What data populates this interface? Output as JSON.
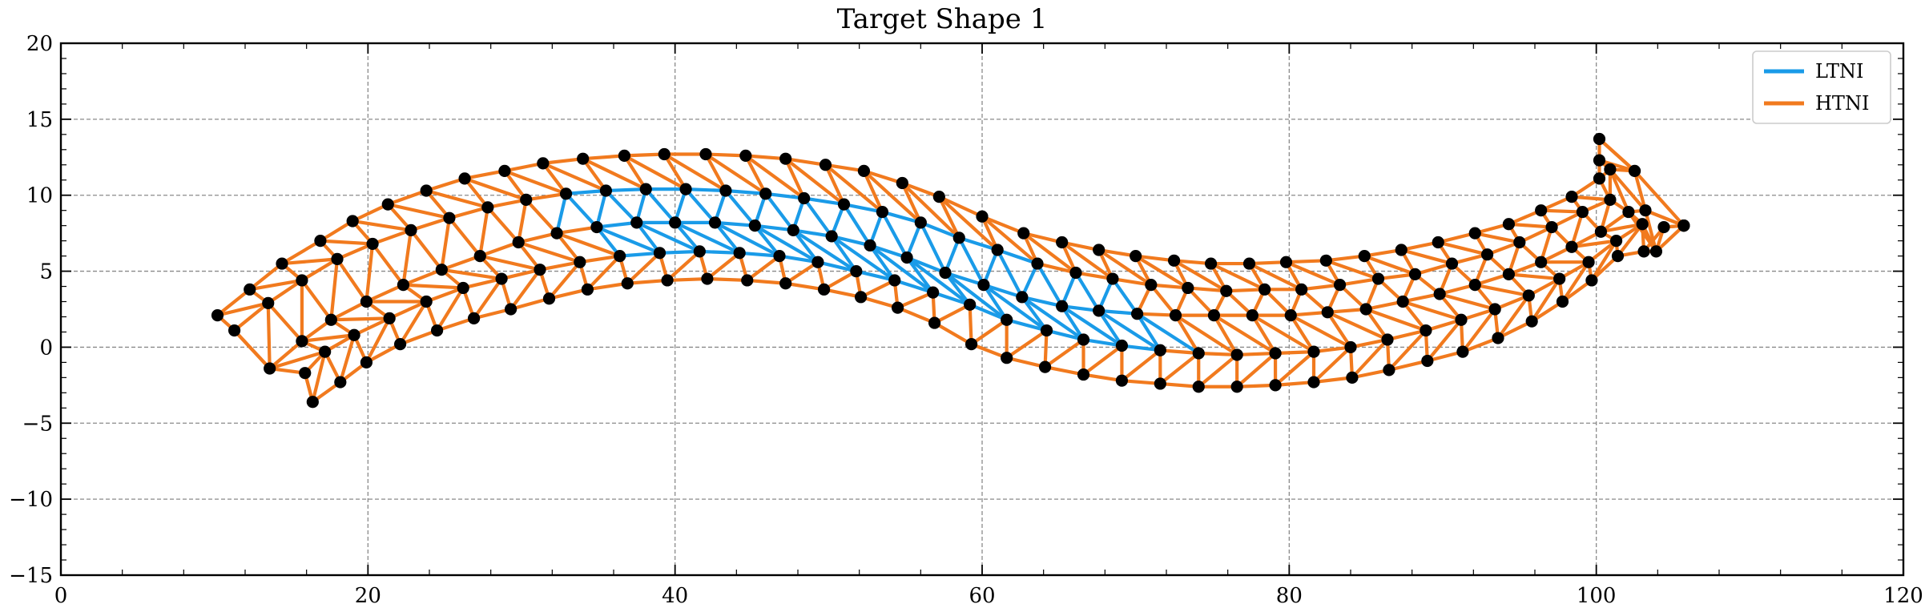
{
  "chart_data": {
    "type": "line",
    "title": "Target Shape 1",
    "xlabel": "",
    "ylabel": "",
    "xlim": [
      0,
      120
    ],
    "ylim": [
      -15,
      20
    ],
    "x_ticks": [
      0,
      20,
      40,
      60,
      80,
      100,
      120
    ],
    "y_ticks": [
      -15,
      -10,
      -5,
      0,
      5,
      10,
      15,
      20
    ],
    "x_tick_labels": [
      "0",
      "20",
      "40",
      "60",
      "80",
      "100",
      "120"
    ],
    "y_tick_labels": [
      "−15",
      "−10",
      "−5",
      "0",
      "5",
      "10",
      "15",
      "20"
    ],
    "grid": true,
    "legend_position": "top-right",
    "series": [
      {
        "name": "LTNI",
        "color": "#1a9be8"
      },
      {
        "name": "HTNI",
        "color": "#f17a1e"
      }
    ],
    "node_color": "#000000",
    "mesh": {
      "rows": [
        [
          [
            10.2,
            2.1
          ],
          [
            12.3,
            3.8
          ],
          [
            14.4,
            5.5
          ],
          [
            16.9,
            7.0
          ],
          [
            19.0,
            8.3
          ],
          [
            21.3,
            9.4
          ],
          [
            23.8,
            10.3
          ],
          [
            26.3,
            11.1
          ],
          [
            28.9,
            11.6
          ],
          [
            31.4,
            12.1
          ],
          [
            34.0,
            12.4
          ],
          [
            36.7,
            12.6
          ],
          [
            39.3,
            12.7
          ],
          [
            42.0,
            12.7
          ],
          [
            44.6,
            12.6
          ],
          [
            47.2,
            12.4
          ],
          [
            49.8,
            12.0
          ],
          [
            52.3,
            11.6
          ],
          [
            54.8,
            10.8
          ],
          [
            57.2,
            9.9
          ],
          [
            60.0,
            8.6
          ],
          [
            62.7,
            7.5
          ],
          [
            65.2,
            6.9
          ],
          [
            67.6,
            6.4
          ],
          [
            70.0,
            6.0
          ],
          [
            72.5,
            5.7
          ],
          [
            74.9,
            5.5
          ],
          [
            77.4,
            5.5
          ],
          [
            79.8,
            5.6
          ],
          [
            82.4,
            5.7
          ],
          [
            84.9,
            6.0
          ],
          [
            87.3,
            6.4
          ],
          [
            89.7,
            6.9
          ],
          [
            92.1,
            7.5
          ],
          [
            94.3,
            8.1
          ],
          [
            96.4,
            9.0
          ],
          [
            98.4,
            9.9
          ],
          [
            100.2,
            11.1
          ],
          [
            100.2,
            12.3
          ],
          [
            100.2,
            13.7
          ]
        ],
        [
          [
            11.3,
            1.1
          ],
          [
            13.5,
            2.9
          ],
          [
            15.7,
            4.4
          ],
          [
            18.0,
            5.8
          ],
          [
            20.3,
            6.8
          ],
          [
            22.8,
            7.7
          ],
          [
            25.3,
            8.5
          ],
          [
            27.8,
            9.2
          ],
          [
            30.3,
            9.7
          ],
          [
            32.9,
            10.1
          ],
          [
            35.5,
            10.3
          ],
          [
            38.1,
            10.4
          ],
          [
            40.7,
            10.4
          ],
          [
            43.3,
            10.3
          ],
          [
            45.9,
            10.1
          ],
          [
            48.4,
            9.8
          ],
          [
            51.0,
            9.4
          ],
          [
            53.5,
            8.9
          ],
          [
            56.0,
            8.2
          ],
          [
            58.5,
            7.2
          ],
          [
            61.0,
            6.4
          ],
          [
            63.6,
            5.5
          ],
          [
            66.1,
            4.9
          ],
          [
            68.5,
            4.5
          ],
          [
            71.0,
            4.1
          ],
          [
            73.4,
            3.9
          ],
          [
            75.9,
            3.7
          ],
          [
            78.4,
            3.8
          ],
          [
            80.8,
            3.8
          ],
          [
            83.3,
            4.1
          ],
          [
            85.8,
            4.5
          ],
          [
            88.2,
            4.8
          ],
          [
            90.6,
            5.5
          ],
          [
            92.9,
            6.1
          ],
          [
            95.0,
            6.9
          ],
          [
            97.1,
            7.9
          ],
          [
            99.1,
            8.9
          ],
          [
            100.9,
            9.7
          ],
          [
            100.9,
            11.7
          ],
          [
            102.5,
            11.6
          ]
        ],
        [
          [
            13.6,
            -1.4
          ],
          [
            15.7,
            0.4
          ],
          [
            17.6,
            1.8
          ],
          [
            19.9,
            3.0
          ],
          [
            22.3,
            4.1
          ],
          [
            24.8,
            5.1
          ],
          [
            27.3,
            6.0
          ],
          [
            29.8,
            6.9
          ],
          [
            32.3,
            7.5
          ],
          [
            34.9,
            7.9
          ],
          [
            37.5,
            8.2
          ],
          [
            40.0,
            8.2
          ],
          [
            42.6,
            8.2
          ],
          [
            45.2,
            8.0
          ],
          [
            47.7,
            7.7
          ],
          [
            50.2,
            7.3
          ],
          [
            52.7,
            6.7
          ],
          [
            55.1,
            5.9
          ],
          [
            57.6,
            4.9
          ],
          [
            60.1,
            4.1
          ],
          [
            62.6,
            3.3
          ],
          [
            65.2,
            2.7
          ],
          [
            67.6,
            2.4
          ],
          [
            70.1,
            2.2
          ],
          [
            72.6,
            2.1
          ],
          [
            75.1,
            2.1
          ],
          [
            77.6,
            2.1
          ],
          [
            80.1,
            2.1
          ],
          [
            82.5,
            2.3
          ],
          [
            85.0,
            2.5
          ],
          [
            87.4,
            3.0
          ],
          [
            89.8,
            3.5
          ],
          [
            92.1,
            4.1
          ],
          [
            94.3,
            4.8
          ],
          [
            96.4,
            5.6
          ],
          [
            98.4,
            6.6
          ],
          [
            100.3,
            7.6
          ],
          [
            102.1,
            8.9
          ],
          [
            103.2,
            9.0
          ],
          [
            105.7,
            8.0
          ]
        ],
        [
          [
            15.9,
            -1.7
          ],
          [
            17.2,
            -0.3
          ],
          [
            19.1,
            0.8
          ],
          [
            21.4,
            1.9
          ],
          [
            23.8,
            3.0
          ],
          [
            26.2,
            3.9
          ],
          [
            28.7,
            4.5
          ],
          [
            31.2,
            5.1
          ],
          [
            33.8,
            5.6
          ],
          [
            36.4,
            6.0
          ],
          [
            39.0,
            6.2
          ],
          [
            41.6,
            6.3
          ],
          [
            44.2,
            6.2
          ],
          [
            46.8,
            6.0
          ],
          [
            49.3,
            5.6
          ],
          [
            51.8,
            5.0
          ],
          [
            54.3,
            4.4
          ],
          [
            56.8,
            3.6
          ],
          [
            59.2,
            2.8
          ],
          [
            61.6,
            1.8
          ],
          [
            64.2,
            1.1
          ],
          [
            66.6,
            0.5
          ],
          [
            69.1,
            0.1
          ],
          [
            71.6,
            -0.2
          ],
          [
            74.1,
            -0.4
          ],
          [
            76.6,
            -0.5
          ],
          [
            79.1,
            -0.4
          ],
          [
            81.6,
            -0.3
          ],
          [
            84.0,
            0.0
          ],
          [
            86.4,
            0.5
          ],
          [
            88.9,
            1.1
          ],
          [
            91.2,
            1.8
          ],
          [
            93.4,
            2.5
          ],
          [
            95.6,
            3.4
          ],
          [
            97.6,
            4.5
          ],
          [
            99.5,
            5.6
          ],
          [
            101.3,
            7.0
          ],
          [
            103.0,
            8.1
          ],
          [
            103.9,
            6.3
          ],
          [
            105.7,
            8.0
          ]
        ],
        [
          [
            16.4,
            -3.6
          ],
          [
            18.2,
            -2.3
          ],
          [
            19.9,
            -1.0
          ],
          [
            22.1,
            0.2
          ],
          [
            24.5,
            1.1
          ],
          [
            26.9,
            1.9
          ],
          [
            29.3,
            2.5
          ],
          [
            31.8,
            3.2
          ],
          [
            34.3,
            3.8
          ],
          [
            36.9,
            4.2
          ],
          [
            39.5,
            4.4
          ],
          [
            42.1,
            4.5
          ],
          [
            44.7,
            4.4
          ],
          [
            47.2,
            4.2
          ],
          [
            49.7,
            3.8
          ],
          [
            52.1,
            3.3
          ],
          [
            54.5,
            2.6
          ],
          [
            56.9,
            1.6
          ],
          [
            59.3,
            0.2
          ],
          [
            61.6,
            -0.7
          ],
          [
            64.1,
            -1.3
          ],
          [
            66.6,
            -1.8
          ],
          [
            69.1,
            -2.2
          ],
          [
            71.6,
            -2.4
          ],
          [
            74.1,
            -2.6
          ],
          [
            76.6,
            -2.6
          ],
          [
            79.1,
            -2.5
          ],
          [
            81.6,
            -2.3
          ],
          [
            84.1,
            -2.0
          ],
          [
            86.5,
            -1.5
          ],
          [
            89.0,
            -0.9
          ],
          [
            91.3,
            -0.3
          ],
          [
            93.6,
            0.6
          ],
          [
            95.8,
            1.7
          ],
          [
            97.8,
            3.0
          ],
          [
            99.7,
            4.4
          ],
          [
            101.4,
            6.0
          ],
          [
            103.1,
            6.3
          ],
          [
            104.4,
            7.9
          ],
          [
            105.7,
            8.0
          ]
        ]
      ],
      "ltni_segments": [
        [
          9,
          [
            0,
            10
          ]
        ],
        [
          10,
          [
            0,
            12
          ]
        ],
        [
          11,
          [
            0,
            14
          ]
        ],
        [
          12,
          [
            0,
            16
          ]
        ],
        [
          13,
          [
            0,
            18
          ]
        ],
        [
          14,
          [
            0,
            20
          ]
        ],
        [
          15,
          [
            0,
            22
          ]
        ],
        [
          16,
          [
            0,
            26
          ]
        ],
        [
          17,
          [
            0,
            28
          ]
        ],
        [
          18,
          [
            0,
            30
          ]
        ],
        [
          19,
          [
            0,
            32
          ]
        ],
        [
          20,
          [
            0,
            34
          ]
        ],
        [
          21,
          [
            0,
            36
          ]
        ],
        [
          22,
          [
            0,
            38
          ]
        ],
        [
          23,
          [
            0,
            40
          ]
        ]
      ]
    }
  }
}
